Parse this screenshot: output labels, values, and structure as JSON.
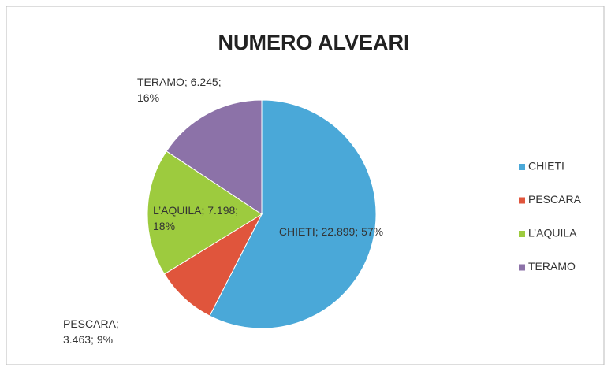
{
  "chart_data": {
    "type": "pie",
    "title": "NUMERO ALVEARI",
    "categories": [
      "CHIETI",
      "PESCARA",
      "L’AQUILA",
      "TERAMO"
    ],
    "values": [
      22899,
      3463,
      7198,
      6245
    ],
    "value_labels": [
      "CHIETI; 22.899; 57%",
      "PESCARA; 3.463; 9%",
      "L’AQUILA; 7.198; 18%",
      "TERAMO; 6.245; 16%"
    ],
    "colors": [
      "#4aa8d8",
      "#e0553c",
      "#9dcb3e",
      "#8c72a8"
    ],
    "legend": "right"
  }
}
